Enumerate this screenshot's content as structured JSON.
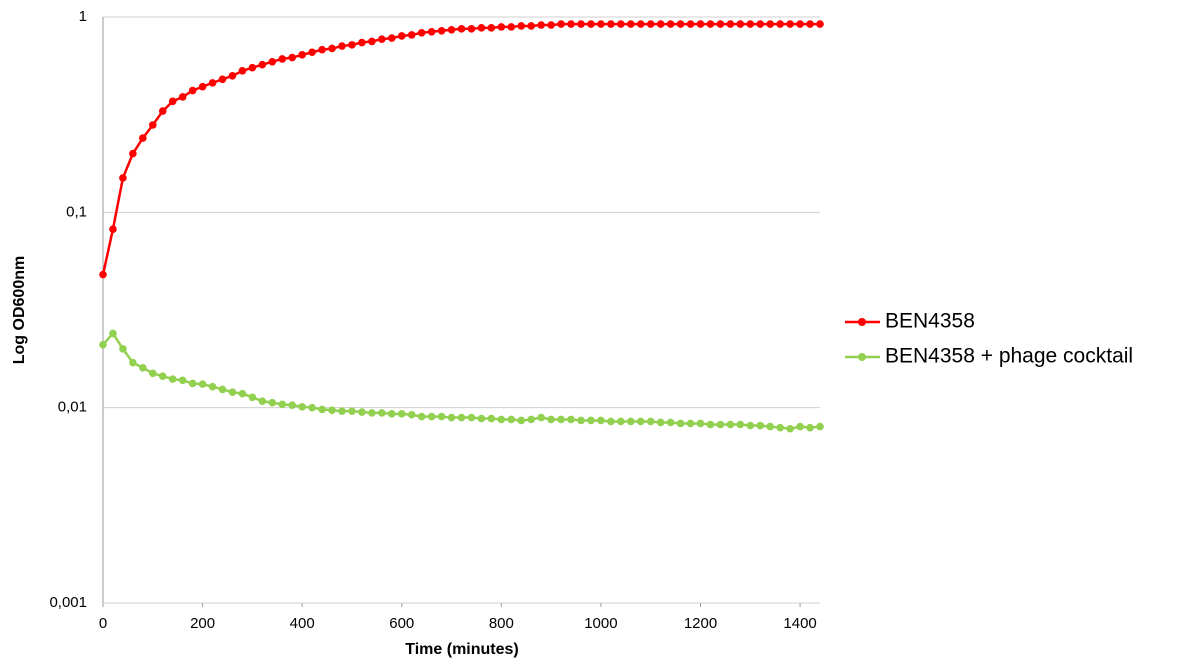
{
  "chart_data": {
    "type": "line",
    "x_label": "Time (minutes)",
    "y_label": "Log OD600nm",
    "log_y": true,
    "grid": true,
    "legend": "right",
    "xlim": [
      0,
      1440
    ],
    "xticks": [
      0,
      200,
      400,
      600,
      800,
      1000,
      1200,
      1400
    ],
    "ylim": [
      0.001,
      1
    ],
    "yticks": [
      {
        "value": 0.001,
        "label": "0,001"
      },
      {
        "value": 0.01,
        "label": "0,01"
      },
      {
        "value": 0.1,
        "label": "0,1"
      },
      1
    ],
    "x": [
      0,
      20,
      40,
      60,
      80,
      100,
      120,
      140,
      160,
      180,
      200,
      220,
      240,
      260,
      280,
      300,
      320,
      340,
      360,
      380,
      400,
      420,
      440,
      460,
      480,
      500,
      520,
      540,
      560,
      580,
      600,
      620,
      640,
      660,
      680,
      700,
      720,
      740,
      760,
      780,
      800,
      820,
      840,
      860,
      880,
      900,
      920,
      940,
      960,
      980,
      1000,
      1020,
      1040,
      1060,
      1080,
      1100,
      1120,
      1140,
      1160,
      1180,
      1200,
      1220,
      1240,
      1260,
      1280,
      1300,
      1320,
      1340,
      1360,
      1380,
      1400,
      1420,
      1440
    ],
    "series": [
      {
        "name": "BEN4358",
        "color": "#ff0000",
        "values": [
          0.048,
          0.082,
          0.15,
          0.2,
          0.24,
          0.28,
          0.33,
          0.37,
          0.39,
          0.42,
          0.44,
          0.46,
          0.48,
          0.5,
          0.53,
          0.55,
          0.57,
          0.59,
          0.61,
          0.62,
          0.64,
          0.66,
          0.68,
          0.69,
          0.71,
          0.72,
          0.74,
          0.75,
          0.77,
          0.78,
          0.8,
          0.81,
          0.83,
          0.84,
          0.85,
          0.86,
          0.87,
          0.87,
          0.88,
          0.88,
          0.89,
          0.89,
          0.9,
          0.9,
          0.91,
          0.91,
          0.92,
          0.92,
          0.92,
          0.92,
          0.92,
          0.92,
          0.92,
          0.92,
          0.92,
          0.92,
          0.92,
          0.92,
          0.92,
          0.92,
          0.92,
          0.92,
          0.92,
          0.92,
          0.92,
          0.92,
          0.92,
          0.92,
          0.92,
          0.92,
          0.92,
          0.92,
          0.92
        ]
      },
      {
        "name": "BEN4358 + phage cocktail",
        "color": "#92d050",
        "values": [
          0.021,
          0.024,
          0.02,
          0.017,
          0.016,
          0.015,
          0.0145,
          0.014,
          0.0138,
          0.0133,
          0.0132,
          0.0128,
          0.0124,
          0.012,
          0.0118,
          0.0113,
          0.0108,
          0.0106,
          0.0104,
          0.0103,
          0.0101,
          0.01,
          0.0098,
          0.0097,
          0.0096,
          0.0096,
          0.0095,
          0.0094,
          0.0094,
          0.0093,
          0.0093,
          0.0092,
          0.009,
          0.009,
          0.009,
          0.0089,
          0.0089,
          0.0089,
          0.0088,
          0.0088,
          0.0087,
          0.0087,
          0.0086,
          0.0087,
          0.0089,
          0.0087,
          0.0087,
          0.0087,
          0.0086,
          0.0086,
          0.0086,
          0.0085,
          0.0085,
          0.0085,
          0.0085,
          0.0085,
          0.0084,
          0.0084,
          0.0083,
          0.0083,
          0.0083,
          0.0082,
          0.0082,
          0.0082,
          0.0082,
          0.0081,
          0.0081,
          0.008,
          0.0079,
          0.0078,
          0.008,
          0.0079,
          0.008
        ]
      }
    ]
  }
}
